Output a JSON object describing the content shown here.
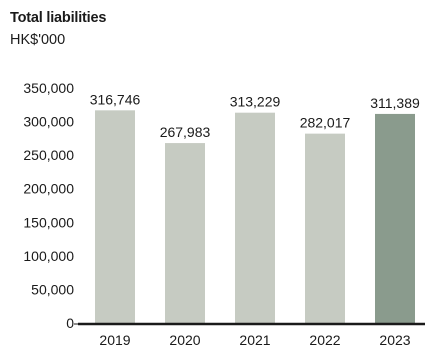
{
  "chart_data": {
    "type": "bar",
    "title": "Total liabilities",
    "unit": "HK$'000",
    "categories": [
      "2019",
      "2020",
      "2021",
      "2022",
      "2023"
    ],
    "values": [
      316746,
      267983,
      313229,
      282017,
      311389
    ],
    "value_labels": [
      "316,746",
      "267,983",
      "313,229",
      "282,017",
      "311,389"
    ],
    "yticks": [
      0,
      50000,
      100000,
      150000,
      200000,
      250000,
      300000,
      350000
    ],
    "ytick_labels": [
      "0",
      "50,000",
      "100,000",
      "150,000",
      "200,000",
      "250,000",
      "300,000",
      "350,000"
    ],
    "ylim": [
      0,
      350000
    ],
    "grid": false,
    "colors": {
      "default_bar": "#c6cbc2",
      "highlight_bar": "#8a9b8d",
      "axis": "#1a1a1a"
    },
    "highlight_index": 4
  }
}
